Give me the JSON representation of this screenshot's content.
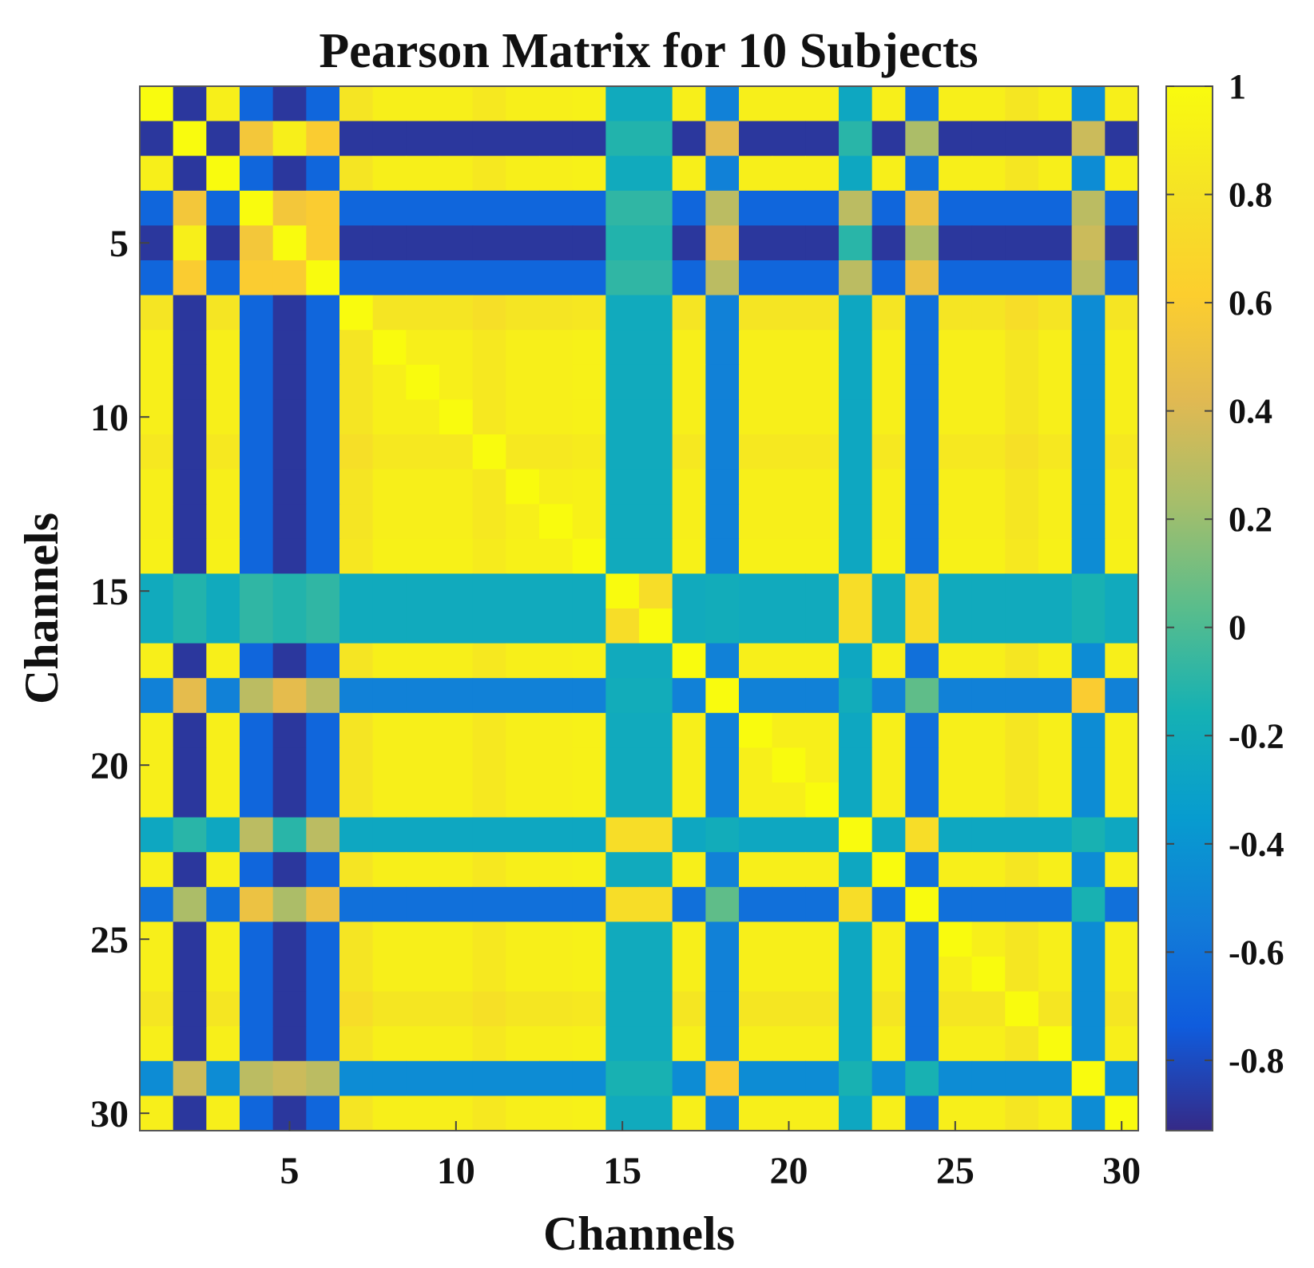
{
  "chart_data": {
    "type": "heatmap",
    "title": "Pearson Matrix for 10 Subjects",
    "xlabel": "Channels",
    "ylabel": "Channels",
    "n": 30,
    "x_ticks": [
      5,
      10,
      15,
      20,
      25,
      30
    ],
    "y_ticks": [
      5,
      10,
      15,
      20,
      25,
      30
    ],
    "colorbar": {
      "colormap": "parula",
      "range": [
        -0.93,
        1.0
      ],
      "ticks": [
        1,
        0.8,
        0.6,
        0.4,
        0.2,
        0,
        -0.2,
        -0.4,
        -0.6,
        -0.8
      ],
      "tick_labels": [
        "1",
        "0.8",
        "0.6",
        "0.4",
        "0.2",
        "0",
        "-0.2",
        "-0.4",
        "-0.6",
        "-0.8"
      ]
    },
    "matrix_layout": "Symmetric; values are reconstructed from group structure: 'base' lists a representative value per channel group, 'deviation' lists per-channel offsets; diagonal equals 1.",
    "channel_groups": {
      "A": [
        1,
        3,
        7,
        8,
        9,
        10,
        11,
        12,
        13,
        14,
        17,
        19,
        20,
        21,
        23,
        25,
        26,
        27,
        28,
        30
      ],
      "B": [
        2,
        5
      ],
      "C": [
        4,
        6
      ],
      "D": [
        15,
        16
      ],
      "E": [
        18
      ],
      "F": [
        22
      ],
      "G": [
        24
      ],
      "H": [
        29
      ]
    },
    "group_correlations": {
      "A-A": 0.9,
      "A-B": -0.88,
      "A-C": -0.68,
      "A-D": -0.22,
      "A-E": -0.52,
      "A-F": -0.25,
      "A-G": -0.62,
      "A-H": -0.45,
      "B-B": 0.9,
      "B-C": 0.55,
      "B-D": -0.12,
      "B-E": 0.45,
      "B-F": -0.1,
      "B-G": 0.25,
      "B-H": 0.35,
      "C-C": 0.55,
      "C-D": -0.08,
      "C-E": 0.3,
      "C-F": 0.3,
      "C-G": 0.5,
      "C-H": 0.3,
      "D-D": 0.75,
      "D-E": -0.2,
      "D-F": 0.75,
      "D-G": 0.75,
      "D-H": -0.15,
      "E-E": 1.0,
      "E-F": -0.2,
      "E-G": 0.05,
      "E-H": 0.6,
      "F-F": 1.0,
      "F-G": 0.75,
      "F-H": -0.15,
      "G-G": 1.0,
      "G-H": -0.15,
      "H-H": 1.0
    },
    "channel_deviation": {
      "7": -0.08,
      "11": -0.05,
      "27": -0.07,
      "2": 0.0,
      "6": 0.05,
      "14": 0.02
    }
  }
}
